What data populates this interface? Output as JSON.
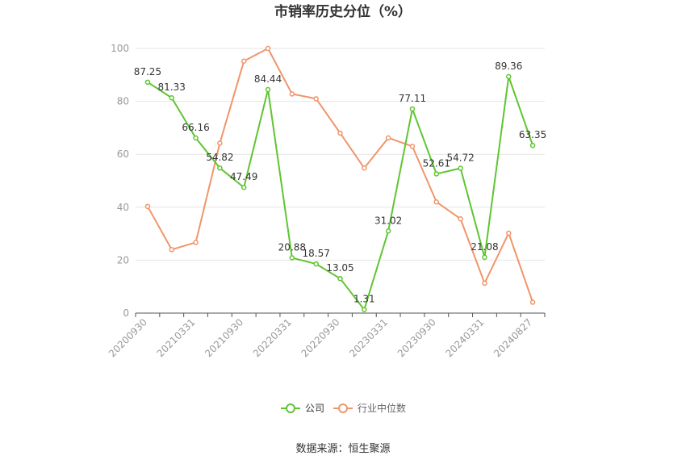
{
  "chart_data": {
    "type": "line",
    "title": "市销率历史分位（%）",
    "categories": [
      "20200930",
      "20201231",
      "20210331",
      "20210630",
      "20210930",
      "20211231",
      "20220331",
      "20220630",
      "20220930",
      "20221230",
      "20230331",
      "20230630",
      "20230930",
      "20231229",
      "20240331",
      "20240628",
      "20240827"
    ],
    "x_tick_labels": [
      "20200930",
      "",
      "20210331",
      "",
      "20210930",
      "",
      "20220331",
      "",
      "20220930",
      "",
      "20230331",
      "",
      "20230930",
      "",
      "20240331",
      "",
      "20240827"
    ],
    "y_ticks": [
      0,
      20,
      40,
      60,
      80,
      100
    ],
    "ylim": [
      0,
      100
    ],
    "grid": true,
    "legend_position": "bottom",
    "series": [
      {
        "name": "公司",
        "color": "#5fc531",
        "values": [
          87.25,
          81.33,
          66.16,
          54.82,
          47.49,
          84.44,
          20.88,
          18.57,
          13.05,
          1.31,
          31.02,
          77.11,
          52.61,
          54.72,
          21.08,
          89.36,
          63.35
        ],
        "labels": [
          "87.25",
          "81.33",
          "66.16",
          "54.82",
          "47.49",
          "84.44",
          "20.88",
          "18.57",
          "13.05",
          "1.31",
          "31.02",
          "77.11",
          "52.61",
          "54.72",
          "21.08",
          "89.36",
          "63.35"
        ]
      },
      {
        "name": "行业中位数",
        "color": "#f0956a",
        "values": [
          40.3,
          24.0,
          26.7,
          64.2,
          95.2,
          100.0,
          82.8,
          81.0,
          68.0,
          54.8,
          66.2,
          63.0,
          42.0,
          35.6,
          11.3,
          30.2,
          4.1
        ]
      }
    ]
  },
  "source_text": "数据来源：恒生聚源"
}
